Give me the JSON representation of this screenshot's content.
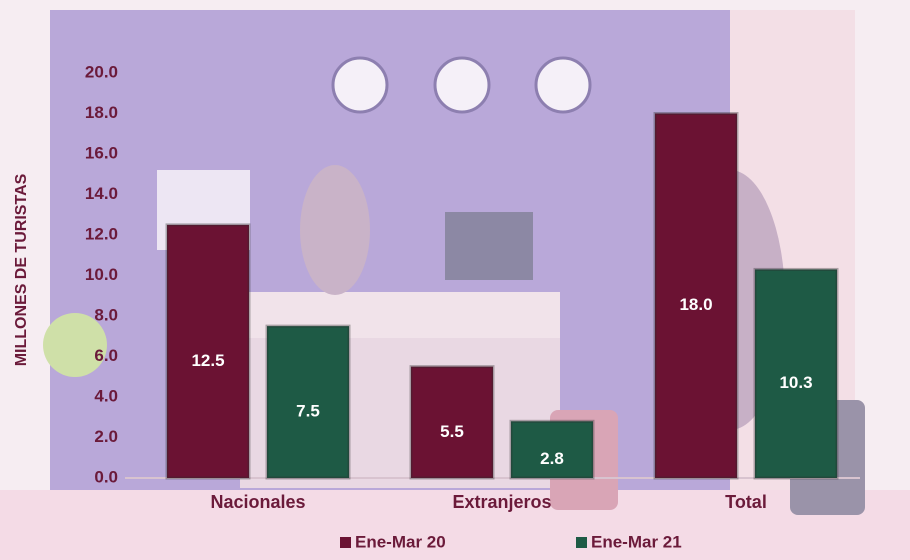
{
  "chart_data": {
    "type": "bar",
    "y_label": "MILLONES DE TURISTAS",
    "categories": [
      "Nacionales",
      "Extranjeros",
      "Total"
    ],
    "series": [
      {
        "name": "Ene-Mar 20",
        "color": "#6b1233",
        "values": [
          12.5,
          5.5,
          18.0
        ],
        "value_labels": [
          "12.5",
          "5.5",
          "18.0"
        ]
      },
      {
        "name": "Ene-Mar 21",
        "color": "#1e5a45",
        "values": [
          7.5,
          2.8,
          10.3
        ],
        "value_labels": [
          "7.5",
          "2.8",
          "10.3"
        ]
      }
    ],
    "ylim": [
      0,
      20
    ],
    "yticks": [
      {
        "value": 0,
        "label": "0.0"
      },
      {
        "value": 2,
        "label": "2.0"
      },
      {
        "value": 4,
        "label": "4.0"
      },
      {
        "value": 6,
        "label": "6.0"
      },
      {
        "value": 8,
        "label": "8.0"
      },
      {
        "value": 10,
        "label": "10.0"
      },
      {
        "value": 12,
        "label": "12.0"
      },
      {
        "value": 14,
        "label": "14.0"
      },
      {
        "value": 16,
        "label": "16.0"
      },
      {
        "value": 18,
        "label": "18.0"
      },
      {
        "value": 20,
        "label": "20.0"
      }
    ],
    "legend": "bottom"
  }
}
